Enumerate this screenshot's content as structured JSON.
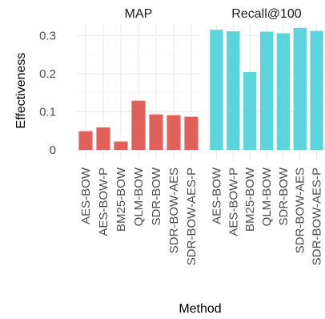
{
  "chart_data": {
    "type": "bar",
    "xlabel": "Method",
    "ylabel": "Effectiveness",
    "ylim": [
      0,
      0.33
    ],
    "yticks": [
      0,
      0.1,
      0.2,
      0.3
    ],
    "ytick_labels": [
      "0",
      "0.1",
      "0.2",
      "0.3"
    ],
    "grid": true,
    "legend": "none",
    "categories": [
      "AES-BOW",
      "AES-BOW-P",
      "BM25-BOW",
      "QLM-BOW",
      "SDR-BOW",
      "SDR-BOW-AES",
      "SDR-BOW-AES-P"
    ],
    "facets": [
      {
        "name": "MAP",
        "color": "#E06159",
        "values": [
          0.049,
          0.059,
          0.022,
          0.129,
          0.093,
          0.091,
          0.087
        ]
      },
      {
        "name": "Recall@100",
        "color": "#5BD4DC",
        "values": [
          0.315,
          0.311,
          0.204,
          0.31,
          0.306,
          0.32,
          0.312
        ]
      }
    ]
  }
}
